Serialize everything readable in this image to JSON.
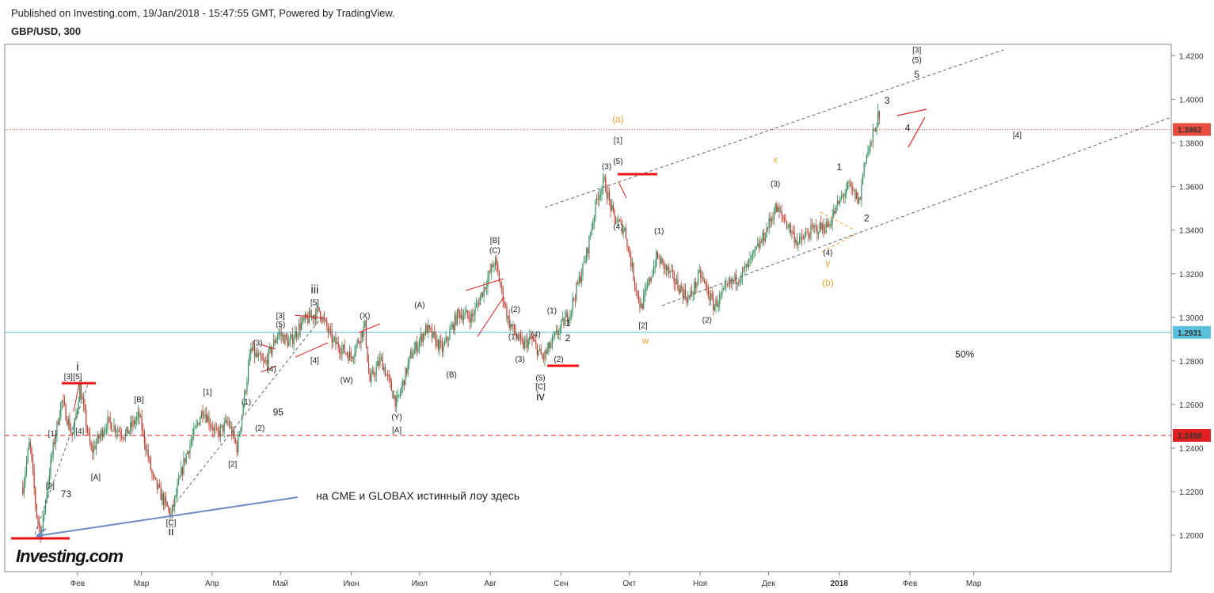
{
  "header": {
    "published": "Published on Investing.com, 19/Jan/2018 - 15:47:55 GMT, Powered by TradingView.",
    "symbol": "GBP/USD, 300"
  },
  "annotation_text": "на CME и GLOBAX  истинный лоу здесь",
  "logo": "Investing.com",
  "colors": {
    "up": "#2e8b57",
    "down": "#c0392b",
    "red_marker": "#ee1111",
    "orange": "#f0a030",
    "arrow": "#6c89c9",
    "price_line_red": "#c0392b",
    "price_line_teal": "#59c7c7",
    "channel": "#555555"
  },
  "chart_data": {
    "type": "candlestick",
    "title": "GBP/USD, 300",
    "xlabel": "",
    "ylabel": "",
    "ylim": [
      1.185,
      1.428
    ],
    "x_ticks": [
      "Фев",
      "Мар",
      "Апр",
      "Май",
      "Июн",
      "Июл",
      "Авг",
      "Сен",
      "Окт",
      "Ноя",
      "Дек",
      "2018",
      "Фев",
      "Мар"
    ],
    "y_ticks": [
      "1.4200",
      "1.4000",
      "1.3800",
      "1.3600",
      "1.3400",
      "1.3200",
      "1.3000",
      "1.2800",
      "1.2600",
      "1.2400",
      "1.2200",
      "1.2000"
    ],
    "price_labels": [
      {
        "value": 1.3862,
        "text": "1.3862",
        "color": "#e74c3c"
      },
      {
        "value": 1.2931,
        "text": "1.2931",
        "color": "#5bc0de"
      },
      {
        "value": 1.2458,
        "text": "1.2458",
        "color": "#e02020"
      }
    ],
    "price_path": [
      {
        "d": "2017-01-08",
        "p": 1.222
      },
      {
        "d": "2017-01-11",
        "p": 1.243
      },
      {
        "d": "2017-01-14",
        "p": 1.21
      },
      {
        "d": "2017-01-16",
        "p": 1.2
      },
      {
        "d": "2017-01-20",
        "p": 1.232
      },
      {
        "d": "2017-01-25",
        "p": 1.262
      },
      {
        "d": "2017-01-30",
        "p": 1.245
      },
      {
        "d": "2017-02-02",
        "p": 1.268
      },
      {
        "d": "2017-02-07",
        "p": 1.238
      },
      {
        "d": "2017-02-14",
        "p": 1.252
      },
      {
        "d": "2017-02-22",
        "p": 1.246
      },
      {
        "d": "2017-02-28",
        "p": 1.255
      },
      {
        "d": "2017-03-06",
        "p": 1.226
      },
      {
        "d": "2017-03-14",
        "p": 1.209
      },
      {
        "d": "2017-03-20",
        "p": 1.235
      },
      {
        "d": "2017-03-28",
        "p": 1.258
      },
      {
        "d": "2017-04-03",
        "p": 1.246
      },
      {
        "d": "2017-04-08",
        "p": 1.252
      },
      {
        "d": "2017-04-12",
        "p": 1.24
      },
      {
        "d": "2017-04-18",
        "p": 1.285
      },
      {
        "d": "2017-04-24",
        "p": 1.278
      },
      {
        "d": "2017-04-30",
        "p": 1.293
      },
      {
        "d": "2017-05-05",
        "p": 1.288
      },
      {
        "d": "2017-05-10",
        "p": 1.297
      },
      {
        "d": "2017-05-18",
        "p": 1.303
      },
      {
        "d": "2017-05-24",
        "p": 1.289
      },
      {
        "d": "2017-06-01",
        "p": 1.282
      },
      {
        "d": "2017-06-07",
        "p": 1.296
      },
      {
        "d": "2017-06-09",
        "p": 1.27
      },
      {
        "d": "2017-06-14",
        "p": 1.281
      },
      {
        "d": "2017-06-21",
        "p": 1.26
      },
      {
        "d": "2017-06-27",
        "p": 1.282
      },
      {
        "d": "2017-07-04",
        "p": 1.295
      },
      {
        "d": "2017-07-11",
        "p": 1.285
      },
      {
        "d": "2017-07-18",
        "p": 1.302
      },
      {
        "d": "2017-07-24",
        "p": 1.3
      },
      {
        "d": "2017-07-31",
        "p": 1.318
      },
      {
        "d": "2017-08-03",
        "p": 1.326
      },
      {
        "d": "2017-08-09",
        "p": 1.298
      },
      {
        "d": "2017-08-15",
        "p": 1.287
      },
      {
        "d": "2017-08-19",
        "p": 1.29
      },
      {
        "d": "2017-08-24",
        "p": 1.281
      },
      {
        "d": "2017-08-30",
        "p": 1.292
      },
      {
        "d": "2017-09-05",
        "p": 1.303
      },
      {
        "d": "2017-09-12",
        "p": 1.328
      },
      {
        "d": "2017-09-17",
        "p": 1.356
      },
      {
        "d": "2017-09-20",
        "p": 1.362
      },
      {
        "d": "2017-09-24",
        "p": 1.346
      },
      {
        "d": "2017-09-29",
        "p": 1.34
      },
      {
        "d": "2017-10-03",
        "p": 1.318
      },
      {
        "d": "2017-10-06",
        "p": 1.304
      },
      {
        "d": "2017-10-13",
        "p": 1.328
      },
      {
        "d": "2017-10-20",
        "p": 1.318
      },
      {
        "d": "2017-10-27",
        "p": 1.308
      },
      {
        "d": "2017-11-01",
        "p": 1.32
      },
      {
        "d": "2017-11-07",
        "p": 1.305
      },
      {
        "d": "2017-11-14",
        "p": 1.315
      },
      {
        "d": "2017-11-21",
        "p": 1.322
      },
      {
        "d": "2017-11-28",
        "p": 1.335
      },
      {
        "d": "2017-12-04",
        "p": 1.35
      },
      {
        "d": "2017-12-08",
        "p": 1.345
      },
      {
        "d": "2017-12-14",
        "p": 1.334
      },
      {
        "d": "2017-12-20",
        "p": 1.34
      },
      {
        "d": "2017-12-27",
        "p": 1.342
      },
      {
        "d": "2018-01-02",
        "p": 1.355
      },
      {
        "d": "2018-01-05",
        "p": 1.36
      },
      {
        "d": "2018-01-10",
        "p": 1.353
      },
      {
        "d": "2018-01-12",
        "p": 1.372
      },
      {
        "d": "2018-01-15",
        "p": 1.38
      },
      {
        "d": "2018-01-18",
        "p": 1.392
      },
      {
        "d": "2018-01-19",
        "p": 1.386
      }
    ],
    "wave_labels": [
      {
        "text": "[3]",
        "d": "2017-01-28",
        "p": 1.2715
      },
      {
        "text": "[5]",
        "d": "2017-02-01",
        "p": 1.2715
      },
      {
        "text": "i",
        "d": "2017-02-01",
        "p": 1.2755,
        "size": "big"
      },
      {
        "text": "[1]",
        "d": "2017-01-21",
        "p": 1.2455
      },
      {
        "text": "[4]",
        "d": "2017-02-02",
        "p": 1.2465
      },
      {
        "text": "[2]",
        "d": "2017-01-20",
        "p": 1.2215
      },
      {
        "text": "73",
        "d": "2017-01-27",
        "p": 1.2175,
        "size": "mid"
      },
      {
        "text": "[A]",
        "d": "2017-02-09",
        "p": 1.2255
      },
      {
        "text": "[B]",
        "d": "2017-02-28",
        "p": 1.261
      },
      {
        "text": "[C]",
        "d": "2017-03-14",
        "p": 1.2045
      },
      {
        "text": "ii",
        "d": "2017-03-14",
        "p": 1.2,
        "size": "big"
      },
      {
        "text": "[1]",
        "d": "2017-03-30",
        "p": 1.2645
      },
      {
        "text": "[2]",
        "d": "2017-04-10",
        "p": 1.2315
      },
      {
        "text": "(1)",
        "d": "2017-04-16",
        "p": 1.26
      },
      {
        "text": "(2)",
        "d": "2017-04-22",
        "p": 1.248
      },
      {
        "text": "(3)",
        "d": "2017-04-21",
        "p": 1.287
      },
      {
        "text": "(4)",
        "d": "2017-04-27",
        "p": 1.275
      },
      {
        "text": "95",
        "d": "2017-04-30",
        "p": 1.255,
        "size": "mid"
      },
      {
        "text": "[3]",
        "d": "2017-05-01",
        "p": 1.2995
      },
      {
        "text": "(5)",
        "d": "2017-05-01",
        "p": 1.2955
      },
      {
        "text": "iii",
        "d": "2017-05-16",
        "p": 1.311,
        "size": "big"
      },
      {
        "text": "[5]",
        "d": "2017-05-16",
        "p": 1.3055
      },
      {
        "text": "[4]",
        "d": "2017-05-16",
        "p": 1.279
      },
      {
        "text": "(X)",
        "d": "2017-06-07",
        "p": 1.2995
      },
      {
        "text": "(W)",
        "d": "2017-05-30",
        "p": 1.27
      },
      {
        "text": "(Y)",
        "d": "2017-06-21",
        "p": 1.253
      },
      {
        "text": "[A]",
        "d": "2017-06-21",
        "p": 1.247
      },
      {
        "text": "(A)",
        "d": "2017-07-01",
        "p": 1.3045
      },
      {
        "text": "(B)",
        "d": "2017-07-15",
        "p": 1.2725
      },
      {
        "text": "[B]",
        "d": "2017-08-03",
        "p": 1.334
      },
      {
        "text": "(C)",
        "d": "2017-08-03",
        "p": 1.3295
      },
      {
        "text": "(2)",
        "d": "2017-08-12",
        "p": 1.3025
      },
      {
        "text": "(1)",
        "d": "2017-08-11",
        "p": 1.29
      },
      {
        "text": "(4)",
        "d": "2017-08-21",
        "p": 1.291
      },
      {
        "text": "(3)",
        "d": "2017-08-14",
        "p": 1.2795
      },
      {
        "text": "(5)",
        "d": "2017-08-23",
        "p": 1.271
      },
      {
        "text": "[C]",
        "d": "2017-08-23",
        "p": 1.267
      },
      {
        "text": "iv",
        "d": "2017-08-23",
        "p": 1.262,
        "size": "big"
      },
      {
        "text": "(1)",
        "d": "2017-08-28",
        "p": 1.302
      },
      {
        "text": "(2)",
        "d": "2017-08-31",
        "p": 1.2795
      },
      {
        "text": "1",
        "d": "2017-09-04",
        "p": 1.296,
        "size": "mid"
      },
      {
        "text": "2",
        "d": "2017-09-04",
        "p": 1.289,
        "size": "mid"
      },
      {
        "text": "(a)",
        "d": "2017-09-26",
        "p": 1.3895,
        "color": "orange",
        "size": "mid"
      },
      {
        "text": "[1]",
        "d": "2017-09-26",
        "p": 1.38
      },
      {
        "text": "(3)",
        "d": "2017-09-21",
        "p": 1.368
      },
      {
        "text": "(5)",
        "d": "2017-09-26",
        "p": 1.3705
      },
      {
        "text": "(4)",
        "d": "2017-09-26",
        "p": 1.3405
      },
      {
        "text": "[2]",
        "d": "2017-10-07",
        "p": 1.295
      },
      {
        "text": "w",
        "d": "2017-10-08",
        "p": 1.288,
        "color": "orange",
        "size": "mid"
      },
      {
        "text": "(1)",
        "d": "2017-10-14",
        "p": 1.3385
      },
      {
        "text": "(2)",
        "d": "2017-11-04",
        "p": 1.2975
      },
      {
        "text": "x",
        "d": "2017-12-04",
        "p": 1.371,
        "color": "orange",
        "size": "mid"
      },
      {
        "text": "(3)",
        "d": "2017-12-04",
        "p": 1.36
      },
      {
        "text": "(4)",
        "d": "2017-12-27",
        "p": 1.3285
      },
      {
        "text": "y",
        "d": "2017-12-27",
        "p": 1.3235,
        "color": "orange",
        "size": "mid"
      },
      {
        "text": "(b)",
        "d": "2017-12-27",
        "p": 1.3145,
        "color": "orange",
        "size": "mid"
      },
      {
        "text": "1",
        "d": "2018-01-01",
        "p": 1.3675,
        "size": "mid"
      },
      {
        "text": "2",
        "d": "2018-01-13",
        "p": 1.344,
        "size": "mid"
      },
      {
        "text": "3",
        "d": "2018-01-22",
        "p": 1.398,
        "size": "mid"
      },
      {
        "text": "4",
        "d": "2018-01-31",
        "p": 1.3855,
        "size": "mid"
      },
      {
        "text": "5",
        "d": "2018-02-04",
        "p": 1.41,
        "size": "mid"
      },
      {
        "text": "(5)",
        "d": "2018-02-04",
        "p": 1.417
      },
      {
        "text": "[3]",
        "d": "2018-02-04",
        "p": 1.4215
      },
      {
        "text": "[4]",
        "d": "2018-03-20",
        "p": 1.3825
      },
      {
        "text": "50%",
        "d": "2018-02-25",
        "p": 1.2815,
        "size": "mid"
      }
    ]
  }
}
